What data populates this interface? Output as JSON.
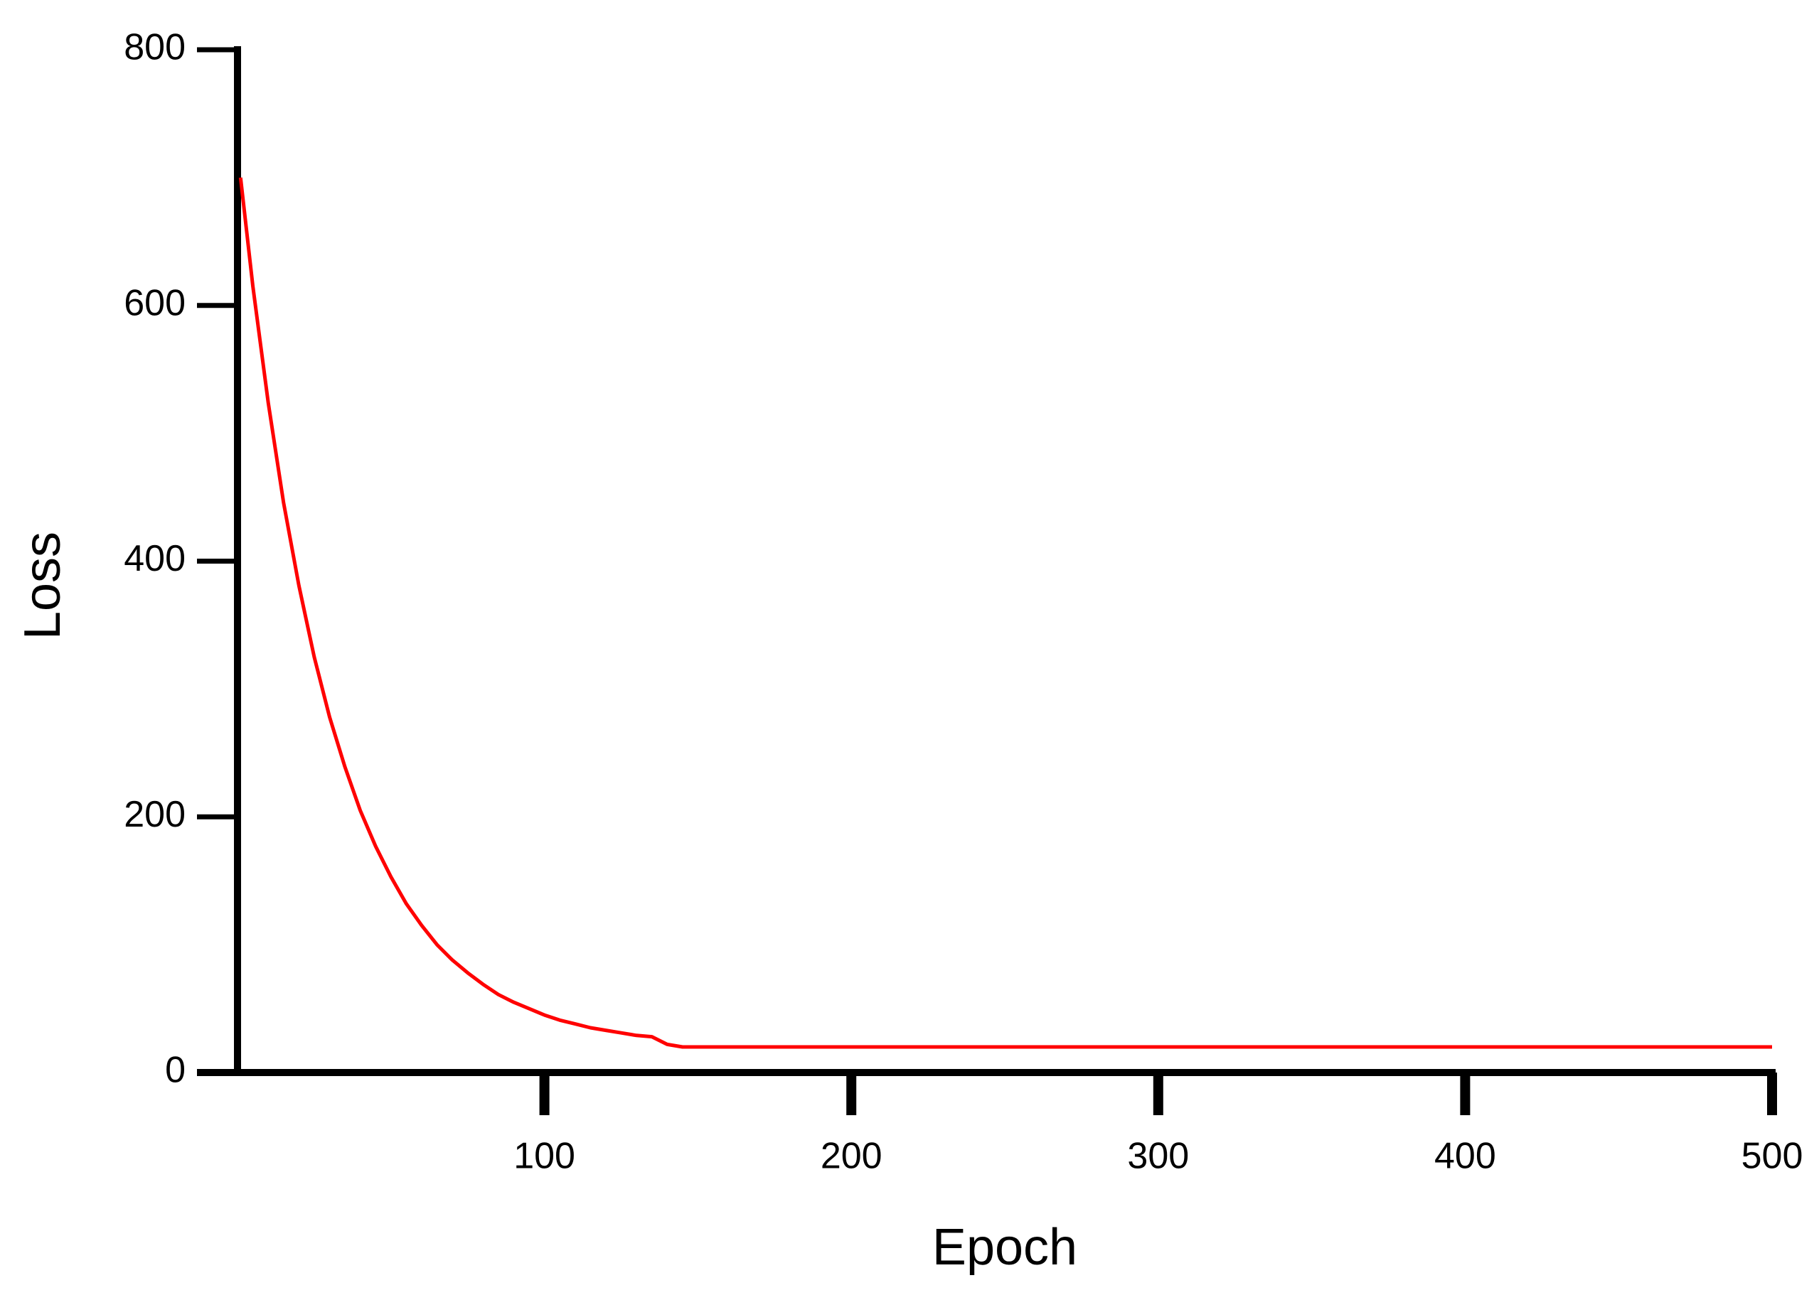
{
  "chart_data": {
    "type": "line",
    "x_label": "Epoch",
    "y_label": "Loss",
    "x": [
      1,
      5,
      10,
      15,
      20,
      25,
      30,
      35,
      40,
      45,
      50,
      55,
      60,
      65,
      70,
      75,
      80,
      85,
      90,
      95,
      100,
      105,
      110,
      115,
      120,
      125,
      130,
      135,
      140,
      145,
      500
    ],
    "series": [
      {
        "name": "Loss",
        "color": "#ff0000",
        "values": [
          700,
          615,
          524,
          446,
          381,
          325,
          278,
          239,
          205,
          177,
          153,
          132,
          115,
          100,
          88,
          78,
          69,
          61,
          55,
          50,
          45,
          41,
          38,
          35,
          33,
          31,
          29,
          28,
          22,
          20,
          20
        ]
      }
    ],
    "xlim": [
      0,
      500
    ],
    "xticks": [
      100,
      200,
      300,
      400,
      500
    ],
    "ylim": [
      0,
      800
    ],
    "yticks": [
      0,
      200,
      400,
      600,
      800
    ],
    "grid": false
  }
}
